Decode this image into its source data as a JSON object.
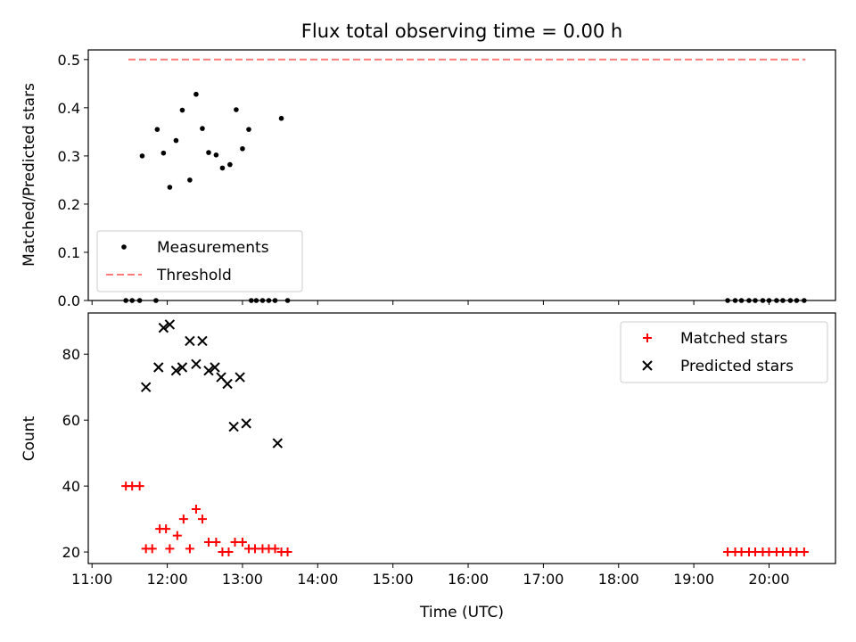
{
  "chart_data": {
    "title": "Flux total observing time = 0.00 h",
    "xlabel": "Time (UTC)",
    "xlim": [
      "10:57",
      "20:53"
    ],
    "xticks": [
      "11:00",
      "12:00",
      "13:00",
      "14:00",
      "15:00",
      "16:00",
      "17:00",
      "18:00",
      "19:00",
      "20:00"
    ],
    "panels": [
      {
        "type": "scatter",
        "ylabel": "Matched/Predicted stars",
        "ylim": [
          0,
          0.52
        ],
        "yticks": [
          "0.0",
          "0.1",
          "0.2",
          "0.3",
          "0.4",
          "0.5"
        ],
        "legend_position": "lower-left",
        "series": [
          {
            "name": "Measurements",
            "marker": "dot",
            "color": "#000000",
            "points": [
              [
                "11:27",
                0.0
              ],
              [
                "11:32",
                0.0
              ],
              [
                "11:38",
                0.0
              ],
              [
                "11:51",
                0.0
              ],
              [
                "11:40",
                0.3
              ],
              [
                "11:52",
                0.355
              ],
              [
                "11:57",
                0.306
              ],
              [
                "12:02",
                0.235
              ],
              [
                "12:07",
                0.332
              ],
              [
                "12:12",
                0.395
              ],
              [
                "12:18",
                0.25
              ],
              [
                "12:23",
                0.428
              ],
              [
                "12:28",
                0.357
              ],
              [
                "12:33",
                0.307
              ],
              [
                "12:39",
                0.302
              ],
              [
                "12:44",
                0.275
              ],
              [
                "12:50",
                0.282
              ],
              [
                "12:55",
                0.396
              ],
              [
                "13:00",
                0.315
              ],
              [
                "13:05",
                0.355
              ],
              [
                "13:07",
                0.0
              ],
              [
                "13:11",
                0.0
              ],
              [
                "13:16",
                0.0
              ],
              [
                "13:21",
                0.0
              ],
              [
                "13:26",
                0.0
              ],
              [
                "13:31",
                0.378
              ],
              [
                "13:36",
                0.0
              ],
              [
                "19:27",
                0.0
              ],
              [
                "19:33",
                0.0
              ],
              [
                "19:38",
                0.0
              ],
              [
                "19:44",
                0.0
              ],
              [
                "19:49",
                0.0
              ],
              [
                "19:55",
                0.0
              ],
              [
                "20:00",
                0.0
              ],
              [
                "20:06",
                0.0
              ],
              [
                "20:11",
                0.0
              ],
              [
                "20:17",
                0.0
              ],
              [
                "20:22",
                0.0
              ],
              [
                "20:28",
                0.0
              ]
            ]
          },
          {
            "name": "Threshold",
            "type": "line",
            "style": "dashed",
            "color": "#ff7a7a",
            "points": [
              [
                "11:29",
                0.5
              ],
              [
                "20:29",
                0.5
              ]
            ]
          }
        ]
      },
      {
        "type": "scatter",
        "ylabel": "Count",
        "ylim": [
          16.5,
          92.5
        ],
        "yticks": [
          "20",
          "40",
          "60",
          "80"
        ],
        "legend_position": "upper-right",
        "series": [
          {
            "name": "Matched stars",
            "marker": "plus",
            "color": "#ff0000",
            "points": [
              [
                "11:27",
                40
              ],
              [
                "11:32",
                40
              ],
              [
                "11:38",
                40
              ],
              [
                "11:43",
                21
              ],
              [
                "11:48",
                21
              ],
              [
                "11:54",
                27
              ],
              [
                "11:59",
                27
              ],
              [
                "12:02",
                21
              ],
              [
                "12:08",
                25
              ],
              [
                "12:13",
                30
              ],
              [
                "12:18",
                21
              ],
              [
                "12:23",
                33
              ],
              [
                "12:28",
                30
              ],
              [
                "12:33",
                23
              ],
              [
                "12:39",
                23
              ],
              [
                "12:44",
                20
              ],
              [
                "12:49",
                20
              ],
              [
                "12:54",
                23
              ],
              [
                "13:00",
                23
              ],
              [
                "13:05",
                21
              ],
              [
                "13:10",
                21
              ],
              [
                "13:16",
                21
              ],
              [
                "13:21",
                21
              ],
              [
                "13:26",
                21
              ],
              [
                "13:31",
                20
              ],
              [
                "13:36",
                20
              ],
              [
                "19:27",
                20
              ],
              [
                "19:33",
                20
              ],
              [
                "19:38",
                20
              ],
              [
                "19:44",
                20
              ],
              [
                "19:49",
                20
              ],
              [
                "19:55",
                20
              ],
              [
                "20:00",
                20
              ],
              [
                "20:06",
                20
              ],
              [
                "20:11",
                20
              ],
              [
                "20:17",
                20
              ],
              [
                "20:22",
                20
              ],
              [
                "20:28",
                20
              ]
            ]
          },
          {
            "name": "Predicted stars",
            "marker": "x",
            "color": "#000000",
            "points": [
              [
                "11:43",
                70
              ],
              [
                "11:53",
                76
              ],
              [
                "11:57",
                88
              ],
              [
                "12:02",
                89
              ],
              [
                "12:07",
                75
              ],
              [
                "12:12",
                76
              ],
              [
                "12:18",
                84
              ],
              [
                "12:23",
                77
              ],
              [
                "12:28",
                84
              ],
              [
                "12:33",
                75
              ],
              [
                "12:38",
                76
              ],
              [
                "12:43",
                73
              ],
              [
                "12:48",
                71
              ],
              [
                "12:53",
                58
              ],
              [
                "12:58",
                73
              ],
              [
                "13:03",
                59
              ],
              [
                "13:28",
                53
              ]
            ]
          }
        ]
      }
    ]
  }
}
